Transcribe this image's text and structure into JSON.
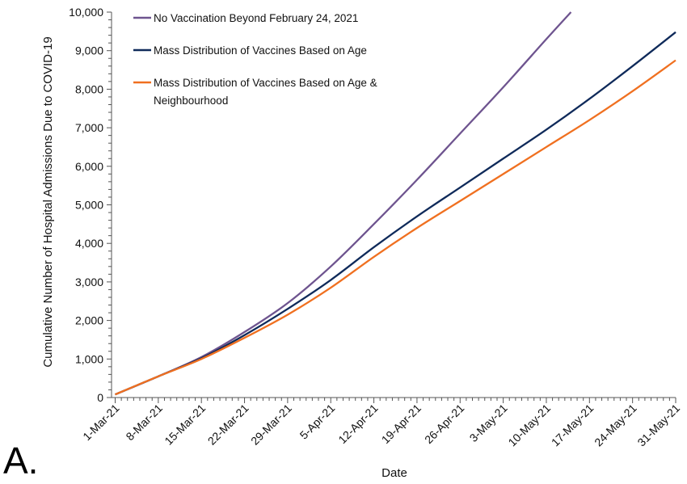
{
  "panel_label": "A.",
  "chart_data": {
    "type": "line",
    "title": "",
    "xlabel": "Date",
    "ylabel": "Cumulative Number of Hospital Admissions Due to COVID-19",
    "ylim": [
      0,
      10000
    ],
    "yticks": [
      "0",
      "1,000",
      "2,000",
      "3,000",
      "4,000",
      "5,000",
      "6,000",
      "7,000",
      "8,000",
      "9,000",
      "10,000"
    ],
    "xlim_days": [
      0,
      91
    ],
    "xtick_labels": [
      "1-Mar-21",
      "8-Mar-21",
      "15-Mar-21",
      "22-Mar-21",
      "29-Mar-21",
      "5-Apr-21",
      "12-Apr-21",
      "19-Apr-21",
      "26-Apr-21",
      "3-May-21",
      "10-May-21",
      "17-May-21",
      "24-May-21",
      "31-May-21"
    ],
    "x_unit": "days since 1-Mar-21",
    "legend_position": "top-left",
    "series": [
      {
        "name": "No Vaccination Beyond February 24, 2021",
        "color": "#6e548f",
        "x": [
          0,
          7,
          14,
          21,
          28,
          35,
          42,
          49,
          56,
          63,
          70,
          74
        ],
        "values": [
          80,
          550,
          1050,
          1700,
          2450,
          3400,
          4500,
          5650,
          6850,
          8050,
          9300,
          10000
        ]
      },
      {
        "name": "Mass Distribution of Vaccines Based on Age",
        "color": "#0f2a5a",
        "x": [
          0,
          7,
          14,
          21,
          28,
          35,
          42,
          49,
          56,
          63,
          70,
          77,
          84,
          91
        ],
        "values": [
          80,
          550,
          1020,
          1620,
          2300,
          3050,
          3900,
          4700,
          5450,
          6200,
          6950,
          7750,
          8600,
          9480
        ]
      },
      {
        "name": "Mass Distribution of Vaccines Based on Age & Neighbourhood",
        "color": "#f07020",
        "x": [
          0,
          7,
          14,
          21,
          28,
          35,
          42,
          49,
          56,
          63,
          70,
          77,
          84,
          91
        ],
        "values": [
          80,
          550,
          1000,
          1550,
          2150,
          2850,
          3650,
          4400,
          5100,
          5800,
          6500,
          7200,
          7950,
          8750
        ]
      }
    ]
  }
}
